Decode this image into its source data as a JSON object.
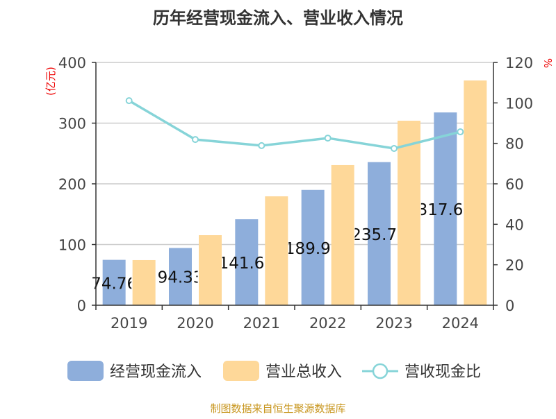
{
  "chart_data": {
    "type": "bar",
    "title": "历年经营现金流入、营业收入情况",
    "categories": [
      "2019",
      "2020",
      "2021",
      "2022",
      "2023",
      "2024"
    ],
    "ylabel_left": "(亿元)",
    "ylabel_right": "%",
    "ylim_left": [
      0,
      400
    ],
    "ylim_right": [
      0,
      120
    ],
    "yticks_left": [
      "0",
      "100",
      "200",
      "300",
      "400"
    ],
    "yticks_right": [
      "0",
      "20",
      "40",
      "60",
      "80",
      "100",
      "120"
    ],
    "grid": true,
    "legend_position": "bottom",
    "series": [
      {
        "name": "经营现金流入",
        "type": "bar",
        "axis": "left",
        "color": "#8eaedb",
        "values": [
          74.76,
          94.33,
          141.63,
          189.99,
          235.78,
          317.62
        ],
        "labels": [
          "74.76",
          "94.33",
          "141.63",
          "189.99",
          "235.78",
          "317.62"
        ]
      },
      {
        "name": "营业总收入",
        "type": "bar",
        "axis": "left",
        "color": "#fed899",
        "values": [
          74.3,
          115.4,
          179.4,
          230.9,
          304.0,
          370.3
        ]
      },
      {
        "name": "营收现金比",
        "type": "line",
        "axis": "right",
        "color": "#86d4d8",
        "values": [
          101.1,
          81.9,
          78.9,
          82.6,
          77.5,
          85.7
        ]
      }
    ],
    "source": "制图数据来自恒生聚源数据库"
  }
}
